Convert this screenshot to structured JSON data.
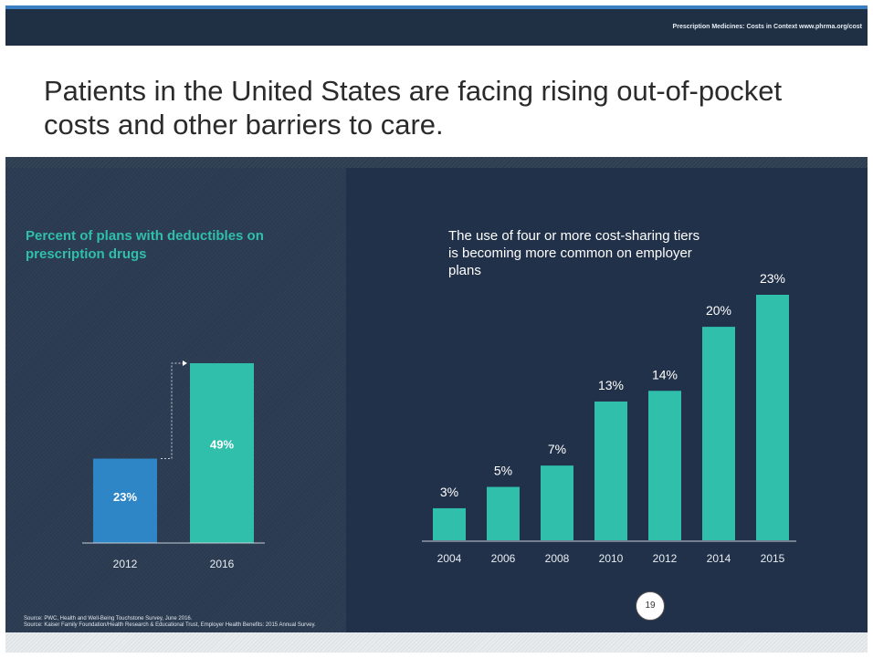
{
  "header_tag": "Prescription Medicines: Costs in Context  www.phrma.org/cost",
  "slide_title": "Patients in the United States are facing rising out-of-pocket costs and other barriers to care.",
  "page_number": "19",
  "sources": [
    "Source: PWC, Health and  Well-Being Touchstone Survey, June 2016.",
    "Source: Kaiser Family Foundation/Health Research & Educational Trust, Employer Health Benefits: 2015 Annual Survey."
  ],
  "colors": {
    "top_bar": "#1f2f44",
    "left_panel": "#2a3a50",
    "right_panel": "#213149",
    "bar_blue": "#2f86c6",
    "bar_teal": "#2fbfab",
    "accent_text": "#2fbfab"
  },
  "chart_data": [
    {
      "type": "bar",
      "title": "Percent of plans with deductibles on prescription drugs",
      "categories": [
        "2012",
        "2016"
      ],
      "values": [
        23,
        49
      ],
      "value_labels": [
        "23%",
        "49%"
      ],
      "bar_colors": [
        "#2f86c6",
        "#2fbfab"
      ],
      "ylim": [
        0,
        49
      ],
      "grid": false,
      "legend": "none"
    },
    {
      "type": "bar",
      "title": "The use of four or more cost-sharing tiers is becoming more common on employer plans",
      "categories": [
        "2004",
        "2006",
        "2008",
        "2010",
        "2012",
        "2014",
        "2015"
      ],
      "values": [
        3,
        5,
        7,
        13,
        14,
        20,
        23
      ],
      "value_labels": [
        "3%",
        "5%",
        "7%",
        "13%",
        "14%",
        "20%",
        "23%"
      ],
      "bar_color": "#2fbfab",
      "ylim": [
        0,
        23
      ],
      "grid": false,
      "legend": "none"
    }
  ]
}
